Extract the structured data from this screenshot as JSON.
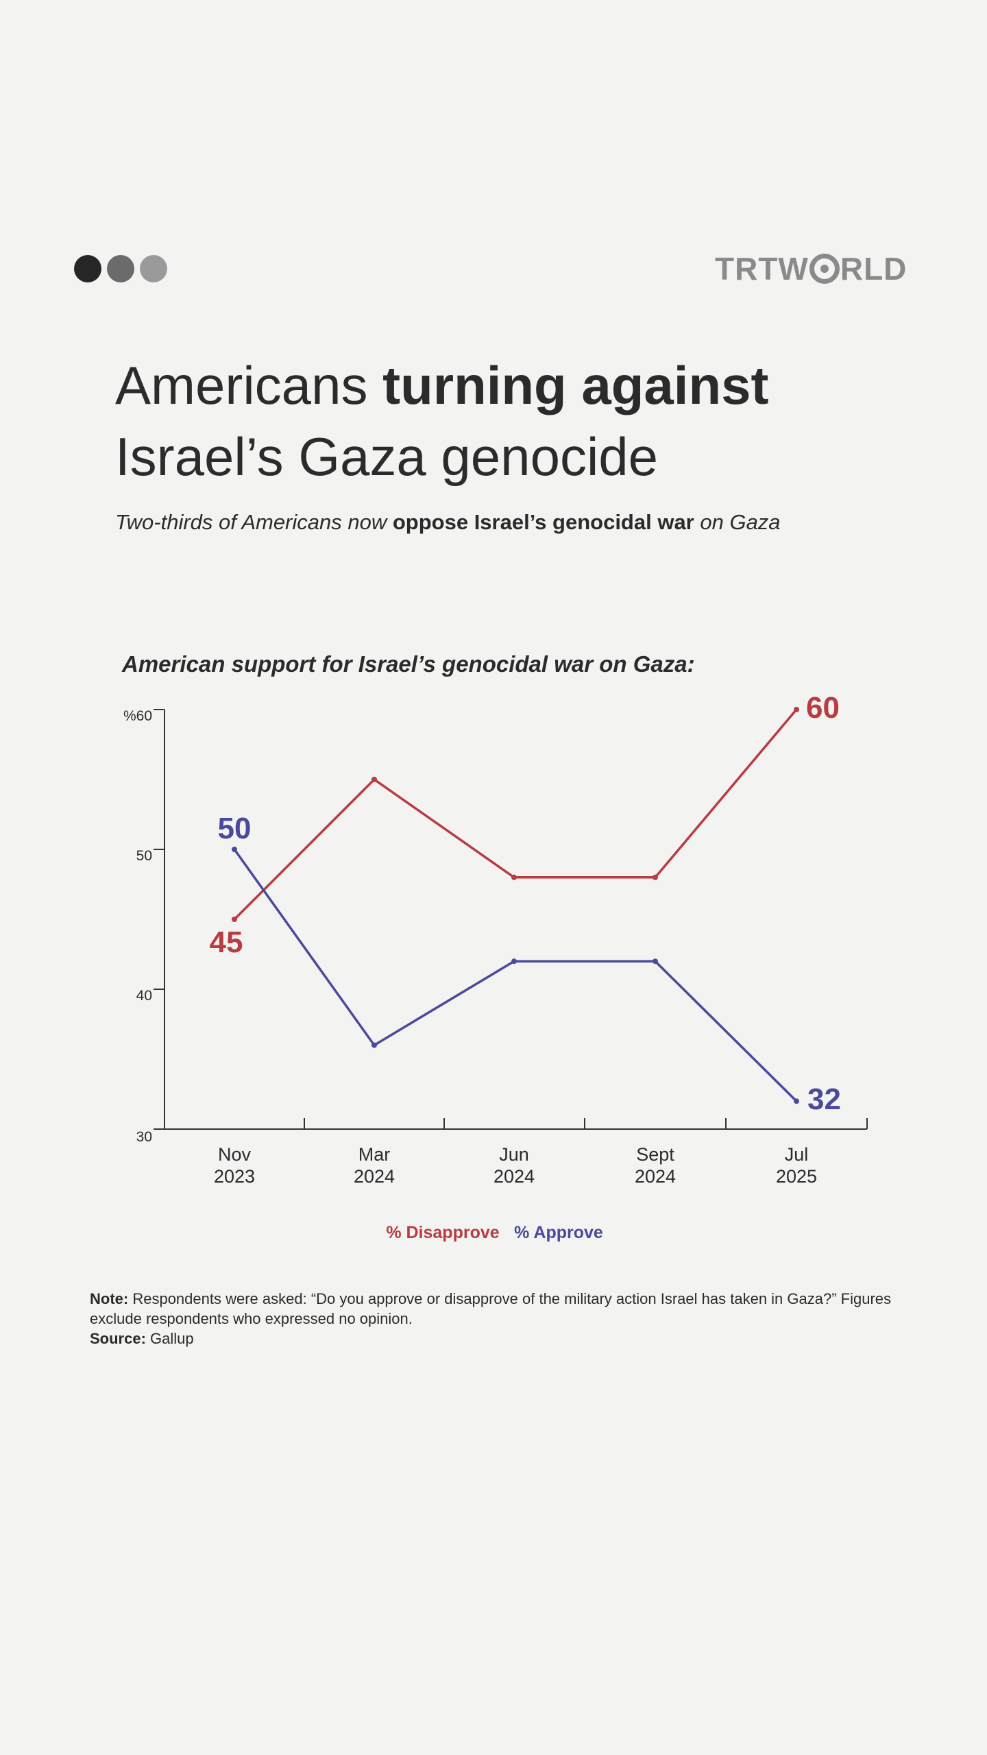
{
  "brand": {
    "logo_text_left": "TRTW",
    "logo_text_right": "RLD",
    "dots": [
      {
        "name": "dot-dark",
        "color": "#262626"
      },
      {
        "name": "dot-mid",
        "color": "#6b6b6b"
      },
      {
        "name": "dot-light",
        "color": "#9a9a9a"
      }
    ]
  },
  "headline": {
    "part1": "Americans ",
    "bold": "turning against",
    "line2": "Israel’s Gaza genocide"
  },
  "subhead": {
    "italic_start": "Two-thirds of Americans now ",
    "bold": "oppose Israel’s genocidal war",
    "italic_end": " on Gaza"
  },
  "chart_data": {
    "type": "line",
    "title": "American support for Israel’s genocidal war on Gaza:",
    "categories": [
      [
        "Nov",
        "2023"
      ],
      [
        "Mar",
        "2024"
      ],
      [
        "Jun",
        "2024"
      ],
      [
        "Sept",
        "2024"
      ],
      [
        "Jul",
        "2025"
      ]
    ],
    "y_ticks": [
      "30",
      "40",
      "50",
      "%60"
    ],
    "ylim": [
      30,
      60
    ],
    "series": [
      {
        "name": "% Disapprove",
        "color": "#b83c40",
        "values": [
          45,
          55,
          48,
          48,
          60
        ],
        "end_labels": [
          "45",
          "60"
        ]
      },
      {
        "name": "% Approve",
        "color": "#4b4a9a",
        "values": [
          50,
          36,
          42,
          42,
          32
        ],
        "end_labels": [
          "50",
          "32"
        ]
      }
    ],
    "legend": "bottom-center",
    "grid": false
  },
  "note": {
    "note_label": "Note:",
    "note_text": " Respondents were asked: “Do you approve or disapprove of the military action Israel has taken in Gaza?” Figures exclude respondents who expressed no opinion.",
    "source_label": "Source:",
    "source_text": " Gallup"
  }
}
